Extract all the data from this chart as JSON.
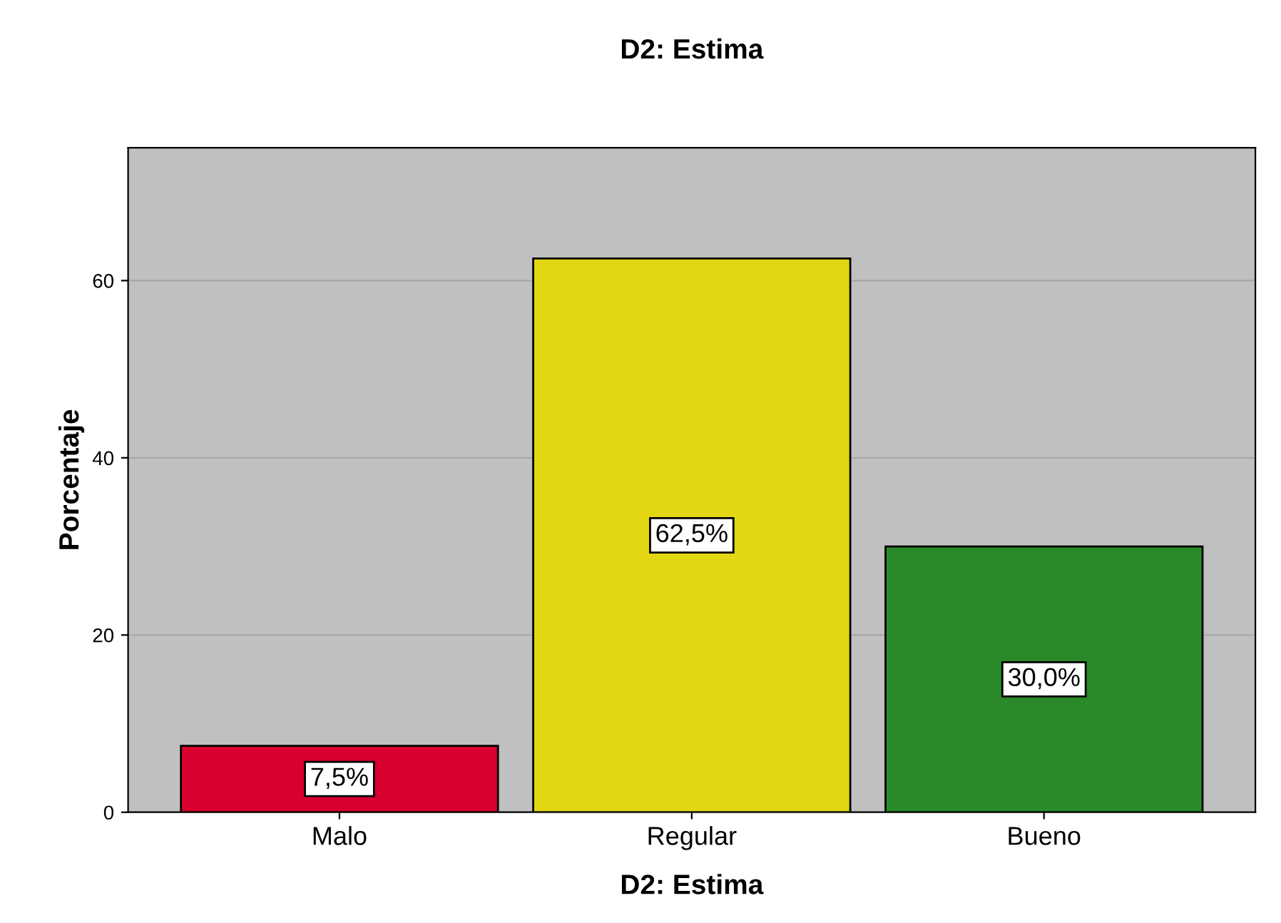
{
  "chart_data": {
    "type": "bar",
    "title": "D2: Estima",
    "xlabel": "D2: Estima",
    "ylabel": "Porcentaje",
    "categories": [
      "Malo",
      "Regular",
      "Bueno"
    ],
    "values": [
      7.5,
      62.5,
      30.0
    ],
    "colors": [
      "#d7002e",
      "#e2d712",
      "#2a8a2a"
    ],
    "value_labels": [
      "7,5%",
      "62,5%",
      "30,0%"
    ],
    "ylim": [
      0,
      75
    ],
    "yticks": [
      0,
      20,
      40,
      60
    ],
    "grid": "y"
  }
}
